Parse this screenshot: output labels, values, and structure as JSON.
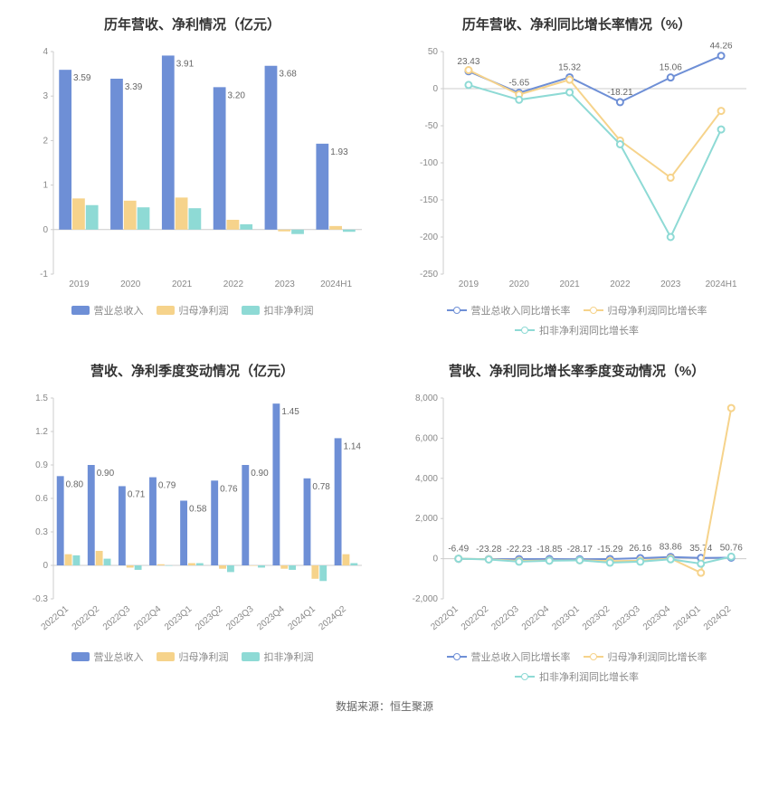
{
  "colors": {
    "blue": "#6e8fd6",
    "yellow": "#f6d38b",
    "teal": "#8edad5",
    "axis": "#cccccc",
    "text": "#888888",
    "title": "#333333",
    "grid_bg": "#ffffff"
  },
  "footer": "数据来源：恒生聚源",
  "chart1": {
    "type": "bar",
    "title": "历年营收、净利情况（亿元）",
    "categories": [
      "2019",
      "2020",
      "2021",
      "2022",
      "2023",
      "2024H1"
    ],
    "ylim": [
      -1,
      4
    ],
    "ytick_step": 1,
    "label_fontsize": 10,
    "series": [
      {
        "name": "营业总收入",
        "color_key": "blue",
        "values": [
          3.59,
          3.39,
          3.91,
          3.2,
          3.68,
          1.93
        ],
        "show_labels": true
      },
      {
        "name": "归母净利润",
        "color_key": "yellow",
        "values": [
          0.7,
          0.65,
          0.72,
          0.22,
          -0.04,
          0.08
        ],
        "show_labels": false
      },
      {
        "name": "扣非净利润",
        "color_key": "teal",
        "values": [
          0.55,
          0.5,
          0.48,
          0.12,
          -0.1,
          -0.05
        ],
        "show_labels": false
      }
    ],
    "legend": [
      "营业总收入",
      "归母净利润",
      "扣非净利润"
    ],
    "legend_style": "rect"
  },
  "chart2": {
    "type": "line",
    "title": "历年营收、净利同比增长率情况（%）",
    "categories": [
      "2019",
      "2020",
      "2021",
      "2022",
      "2023",
      "2024H1"
    ],
    "ylim": [
      -250,
      50
    ],
    "ytick_step": 50,
    "series": [
      {
        "name": "营业总收入同比增长率",
        "color_key": "blue",
        "values": [
          23.43,
          -5.65,
          15.32,
          -18.21,
          15.06,
          44.26
        ],
        "show_labels": true
      },
      {
        "name": "归母净利润同比增长率",
        "color_key": "yellow",
        "values": [
          25.0,
          -8.0,
          12.0,
          -70.0,
          -120.0,
          -30.0
        ],
        "show_labels": false
      },
      {
        "name": "扣非净利润同比增长率",
        "color_key": "teal",
        "values": [
          5.0,
          -15.0,
          -5.0,
          -75.0,
          -200.0,
          -55.0
        ],
        "show_labels": false
      }
    ],
    "legend": [
      "营业总收入同比增长率",
      "归母净利润同比增长率",
      "扣非净利润同比增长率"
    ],
    "legend_style": "line"
  },
  "chart3": {
    "type": "bar",
    "title": "营收、净利季度变动情况（亿元）",
    "categories": [
      "2022Q1",
      "2022Q2",
      "2022Q3",
      "2022Q4",
      "2023Q1",
      "2023Q2",
      "2023Q3",
      "2023Q4",
      "2024Q1",
      "2024Q2"
    ],
    "ylim": [
      -0.3,
      1.5
    ],
    "ytick_step": 0.3,
    "label_fontsize": 10,
    "rotate_x": true,
    "series": [
      {
        "name": "营业总收入",
        "color_key": "blue",
        "values": [
          0.8,
          0.9,
          0.71,
          0.79,
          0.58,
          0.76,
          0.9,
          1.45,
          0.78,
          1.14
        ],
        "show_labels": true
      },
      {
        "name": "归母净利润",
        "color_key": "yellow",
        "values": [
          0.1,
          0.13,
          -0.02,
          0.01,
          0.02,
          -0.03,
          0.0,
          -0.03,
          -0.12,
          0.1
        ],
        "show_labels": false
      },
      {
        "name": "扣非净利润",
        "color_key": "teal",
        "values": [
          0.09,
          0.06,
          -0.04,
          0.0,
          0.02,
          -0.06,
          -0.02,
          -0.04,
          -0.14,
          0.02
        ],
        "show_labels": false
      }
    ],
    "legend": [
      "营业总收入",
      "归母净利润",
      "扣非净利润"
    ],
    "legend_style": "rect"
  },
  "chart4": {
    "type": "line",
    "title": "营收、净利同比增长率季度变动情况（%）",
    "categories": [
      "2022Q1",
      "2022Q2",
      "2022Q3",
      "2022Q4",
      "2023Q1",
      "2023Q2",
      "2023Q3",
      "2023Q4",
      "2024Q1",
      "2024Q2"
    ],
    "ylim": [
      -2000,
      8000
    ],
    "ytick_step": 2000,
    "rotate_x": true,
    "series": [
      {
        "name": "营业总收入同比增长率",
        "color_key": "blue",
        "values": [
          -6.49,
          -23.28,
          -22.23,
          -18.85,
          -28.17,
          -15.29,
          26.16,
          83.86,
          35.74,
          50.76
        ],
        "show_labels": true
      },
      {
        "name": "归母净利润同比增长率",
        "color_key": "yellow",
        "values": [
          0,
          -30,
          -110,
          -90,
          -80,
          -120,
          -100,
          10,
          -700,
          7500
        ],
        "show_labels": false
      },
      {
        "name": "扣非净利润同比增长率",
        "color_key": "teal",
        "values": [
          0,
          -40,
          -150,
          -100,
          -80,
          -200,
          -150,
          -30,
          -250,
          100
        ],
        "show_labels": false
      }
    ],
    "legend": [
      "营业总收入同比增长率",
      "归母净利润同比增长率",
      "扣非净利润同比增长率"
    ],
    "legend_style": "line"
  }
}
